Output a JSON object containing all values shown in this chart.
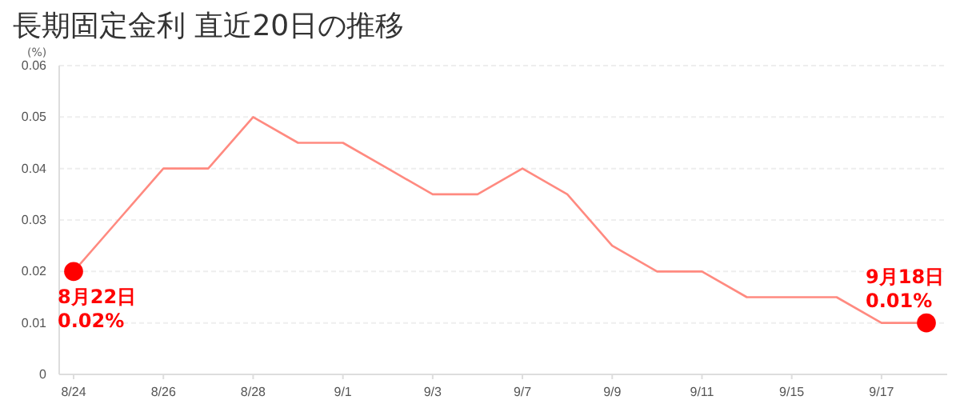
{
  "chart_data": {
    "type": "line",
    "title": "長期固定金利 直近20日の推移",
    "ylabel": "(%)",
    "categories": [
      "8/24",
      null,
      "8/26",
      null,
      "8/28",
      null,
      "9/1",
      null,
      "9/3",
      null,
      "9/7",
      null,
      "9/9",
      null,
      "9/11",
      null,
      "9/15",
      null,
      "9/17",
      null
    ],
    "series": [
      {
        "color": "#ff8a80",
        "values": [
          0.02,
          0.03,
          0.04,
          0.04,
          0.05,
          0.045,
          0.045,
          0.04,
          0.035,
          0.035,
          0.04,
          0.035,
          0.025,
          0.02,
          0.02,
          0.015,
          0.015,
          0.015,
          0.01,
          0.01
        ]
      },
      {
        "type": "scatter",
        "color": "#ff0000",
        "marker": "circle",
        "values": [
          0.02,
          null,
          null,
          null,
          null,
          null,
          null,
          null,
          null,
          null,
          null,
          null,
          null,
          null,
          null,
          null,
          null,
          null,
          null,
          0.01
        ]
      }
    ],
    "ylim": [
      0,
      0.06
    ],
    "yticks": [
      {
        "value": 0,
        "label": "0"
      },
      0.01,
      0.02,
      0.03,
      0.04,
      0.05,
      0.06
    ],
    "grid": "y",
    "annotations": [
      "8月22日\n0.02%",
      "9月18日\n0.01%"
    ]
  }
}
